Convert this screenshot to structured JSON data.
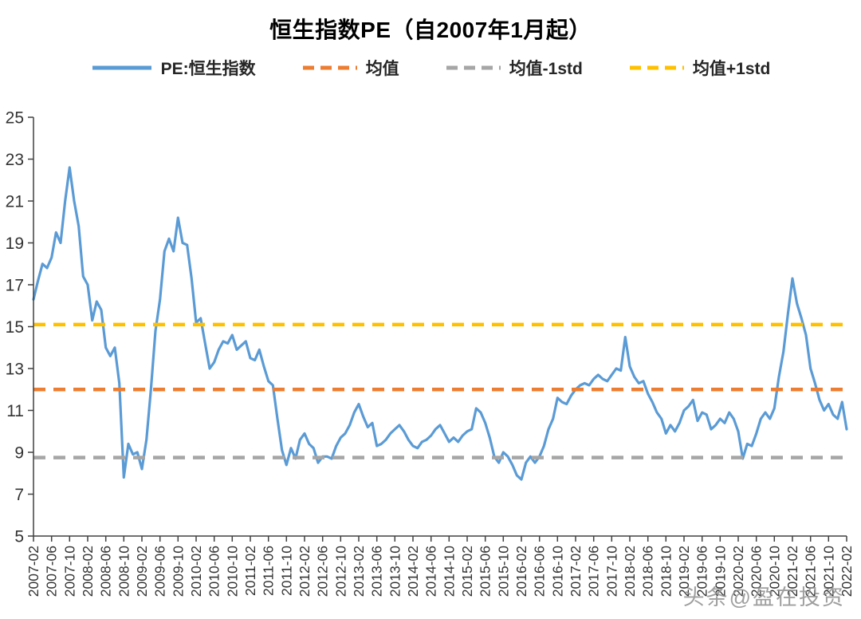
{
  "title": "恒生指数PE（自2007年1月起）",
  "watermark": "头条@盈在投资",
  "legend": [
    {
      "label": "PE:恒生指数",
      "color": "#5B9BD5",
      "style": "solid"
    },
    {
      "label": "均值",
      "color": "#ED7D31",
      "style": "dashed"
    },
    {
      "label": "均值-1std",
      "color": "#A6A6A6",
      "style": "dashed"
    },
    {
      "label": "均值+1std",
      "color": "#FFC000",
      "style": "dashed"
    }
  ],
  "chart_data": {
    "type": "line",
    "title": "恒生指数PE（自2007年1月起）",
    "xlabel": "",
    "ylabel": "",
    "ylim": [
      5,
      25
    ],
    "y_ticks": [
      5,
      7,
      9,
      11,
      13,
      15,
      17,
      19,
      21,
      23,
      25
    ],
    "grid": false,
    "legend_position": "top",
    "x_frequency": "monthly",
    "x_start": "2007-02",
    "x_end": "2022-02",
    "x_tick_every_n_points": 4,
    "x_tick_labels": [
      "2007-02",
      "2007-06",
      "2007-10",
      "2008-02",
      "2008-06",
      "2008-10",
      "2009-02",
      "2009-06",
      "2009-10",
      "2010-02",
      "2010-06",
      "2010-10",
      "2011-02",
      "2011-06",
      "2011-10",
      "2012-02",
      "2012-06",
      "2012-10",
      "2013-02",
      "2013-06",
      "2013-10",
      "2014-02",
      "2014-06",
      "2014-10",
      "2015-02",
      "2015-06",
      "2015-10",
      "2016-02",
      "2016-06",
      "2016-10",
      "2017-02",
      "2017-06",
      "2017-10",
      "2018-02",
      "2018-06",
      "2018-10",
      "2019-02",
      "2019-06",
      "2019-10",
      "2020-02",
      "2020-06",
      "2020-10",
      "2021-02",
      "2021-06",
      "2021-10",
      "2022-02"
    ],
    "series": [
      {
        "name": "PE:恒生指数",
        "color": "#5B9BD5",
        "values": [
          16.3,
          17.2,
          18.0,
          17.8,
          18.3,
          19.5,
          19.0,
          21.0,
          22.6,
          21.0,
          19.8,
          17.4,
          17.0,
          15.3,
          16.2,
          15.8,
          14.0,
          13.6,
          14.0,
          12.3,
          7.8,
          9.4,
          8.9,
          9.0,
          8.2,
          9.6,
          12.0,
          14.8,
          16.3,
          18.6,
          19.2,
          18.6,
          20.2,
          19.0,
          18.9,
          17.3,
          15.2,
          15.4,
          14.2,
          13.0,
          13.3,
          13.9,
          14.3,
          14.2,
          14.6,
          13.9,
          14.1,
          14.3,
          13.5,
          13.4,
          13.9,
          13.1,
          12.4,
          12.2,
          10.6,
          9.1,
          8.4,
          9.2,
          8.7,
          9.6,
          9.9,
          9.4,
          9.2,
          8.5,
          8.8,
          8.8,
          8.7,
          9.3,
          9.7,
          9.9,
          10.3,
          10.9,
          11.3,
          10.7,
          10.2,
          10.4,
          9.3,
          9.4,
          9.6,
          9.9,
          10.1,
          10.3,
          10.0,
          9.6,
          9.3,
          9.2,
          9.5,
          9.6,
          9.8,
          10.1,
          10.3,
          9.9,
          9.5,
          9.7,
          9.5,
          9.8,
          10.0,
          10.1,
          11.1,
          10.9,
          10.4,
          9.7,
          8.8,
          8.5,
          9.0,
          8.8,
          8.4,
          7.9,
          7.7,
          8.5,
          8.8,
          8.5,
          8.8,
          9.3,
          10.1,
          10.6,
          11.6,
          11.4,
          11.3,
          11.7,
          12.0,
          12.2,
          12.3,
          12.2,
          12.5,
          12.7,
          12.5,
          12.4,
          12.7,
          13.0,
          12.9,
          14.5,
          13.1,
          12.6,
          12.3,
          12.4,
          11.8,
          11.4,
          10.9,
          10.6,
          9.9,
          10.3,
          10.0,
          10.4,
          11.0,
          11.2,
          11.5,
          10.5,
          10.9,
          10.8,
          10.1,
          10.3,
          10.6,
          10.4,
          10.9,
          10.6,
          10.0,
          8.7,
          9.4,
          9.3,
          9.9,
          10.6,
          10.9,
          10.6,
          11.1,
          12.6,
          13.8,
          15.6,
          17.3,
          16.1,
          15.4,
          14.6,
          13.0,
          12.3,
          11.5,
          11.0,
          11.3,
          10.8,
          10.6,
          11.4,
          10.1
        ]
      }
    ],
    "ref_lines": [
      {
        "name": "均值",
        "value": 12.0,
        "color": "#ED7D31"
      },
      {
        "name": "均值-1std",
        "value": 8.75,
        "color": "#A6A6A6"
      },
      {
        "name": "均值+1std",
        "value": 15.1,
        "color": "#FFC000"
      }
    ]
  }
}
